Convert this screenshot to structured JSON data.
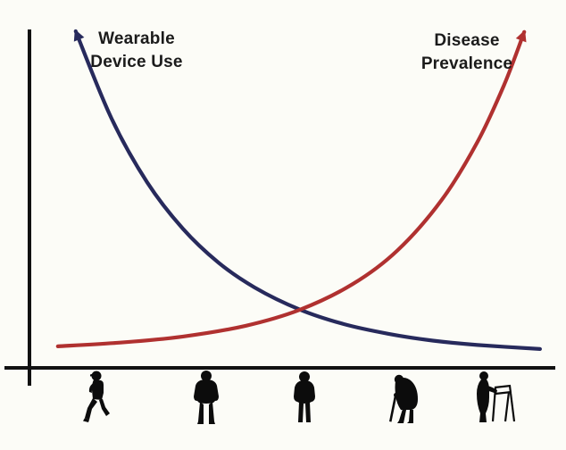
{
  "figure": {
    "background_color": "#fcfcf7",
    "axis_color": "#111111",
    "silhouette_color": "#0c0c0c"
  },
  "curve_labels": {
    "wearable": {
      "line1": "Wearable",
      "line2": "Device Use"
    },
    "disease": {
      "line1": "Disease",
      "line2": "Prevalence"
    }
  },
  "x_axis_marker_icons": [
    "jogging-youth",
    "walking-adult",
    "standing-adult",
    "elderly-with-cane",
    "elderly-with-walker"
  ],
  "chart_data": {
    "type": "line",
    "title": "",
    "xlabel": "",
    "ylabel": "",
    "x_range": [
      0,
      100
    ],
    "y_range": [
      0,
      100
    ],
    "grid": false,
    "legend_position": "labels-near-curve-tips",
    "annotation": "x-axis shows five human silhouettes of increasing age (youth to elderly with walker); curves cross near mid-chart",
    "series": [
      {
        "name": "Wearable Device Use",
        "color": "#272a5c",
        "trend": "decreasing-exponential",
        "arrow_at": "start",
        "points": [
          [
            8.8,
            100
          ],
          [
            15.6,
            74.1
          ],
          [
            22.4,
            55.1
          ],
          [
            29.2,
            41.3
          ],
          [
            36.0,
            31.2
          ],
          [
            42.8,
            23.9
          ],
          [
            51.3,
            17.4
          ],
          [
            59.8,
            13.0
          ],
          [
            68.3,
            10.1
          ],
          [
            76.7,
            8.1
          ],
          [
            85.2,
            6.8
          ],
          [
            97.1,
            5.6
          ]
        ]
      },
      {
        "name": "Disease Prevalence",
        "color": "#b03130",
        "trend": "increasing-exponential",
        "arrow_at": "end",
        "points": [
          [
            5.4,
            6.4
          ],
          [
            17.3,
            7.5
          ],
          [
            29.2,
            9.3
          ],
          [
            41.1,
            12.5
          ],
          [
            51.3,
            17.2
          ],
          [
            61.5,
            24.9
          ],
          [
            70.0,
            34.9
          ],
          [
            78.4,
            49.9
          ],
          [
            85.2,
            67.1
          ],
          [
            90.3,
            84.2
          ],
          [
            94.1,
            99.8
          ]
        ]
      }
    ]
  }
}
